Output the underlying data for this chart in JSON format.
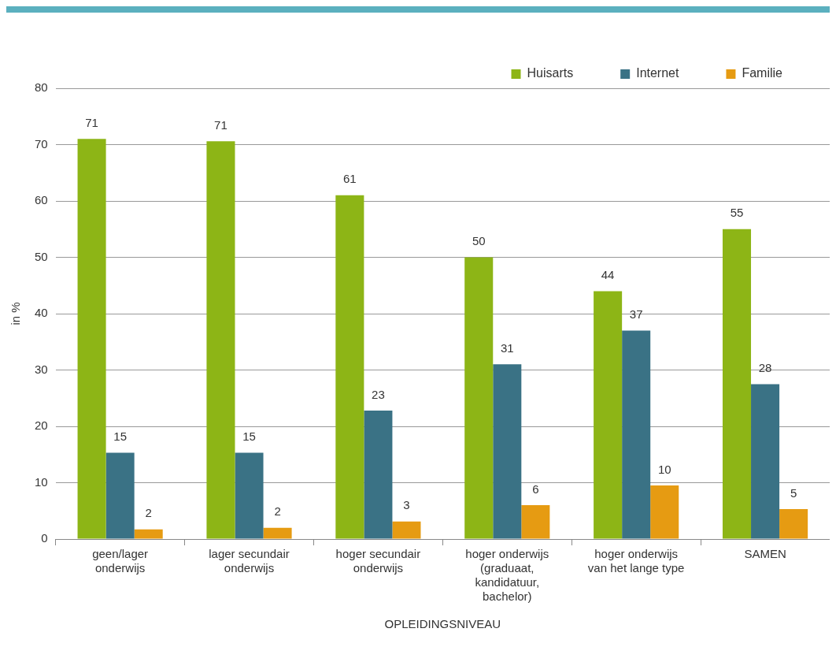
{
  "chart_data": {
    "type": "bar",
    "xlabel": "OPLEIDINGSNIVEAU",
    "ylabel": "in %",
    "categories": [
      "geen/lager onderwijs",
      "lager secundair onderwijs",
      "hoger secundair onderwijs",
      "hoger onderwijs (graduaat, kandidatuur, bachelor)",
      "hoger onderwijs van het lange type",
      "SAMEN"
    ],
    "series": [
      {
        "name": "Huisarts",
        "color": "#8db516",
        "values": [
          71,
          70.6,
          61,
          50,
          44,
          55
        ],
        "value_labels": [
          "71",
          "71",
          "61",
          "50",
          "44",
          "55"
        ]
      },
      {
        "name": "Internet",
        "color": "#3a7285",
        "values": [
          15.3,
          15.3,
          22.8,
          31,
          37,
          27.5
        ],
        "value_labels": [
          "15",
          "15",
          "23",
          "31",
          "37",
          "28"
        ]
      },
      {
        "name": "Familie",
        "color": "#e69b12",
        "values": [
          1.7,
          2,
          3.1,
          6,
          9.5,
          5.3
        ],
        "value_labels": [
          "2",
          "2",
          "3",
          "6",
          "10",
          "5"
        ]
      }
    ],
    "ylim": [
      0,
      80
    ],
    "yticks": [
      0,
      10,
      20,
      30,
      40,
      50,
      60,
      70,
      80
    ],
    "grid": "y",
    "legend": "top right"
  }
}
